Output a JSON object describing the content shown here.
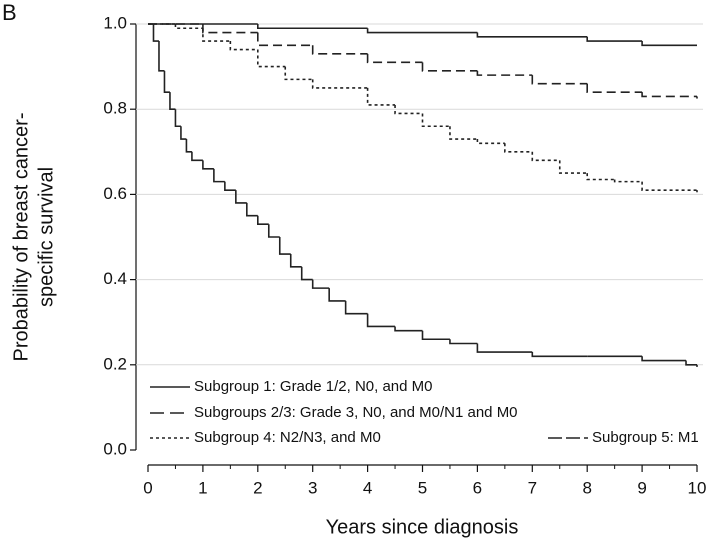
{
  "chart_data": {
    "type": "step",
    "panel_label": "B",
    "xlabel": "Years since diagnosis",
    "ylabel": [
      "Probability of breast cancer-",
      "specific survival"
    ],
    "xlim": [
      0,
      10
    ],
    "xticks": [
      0,
      1,
      2,
      3,
      4,
      5,
      6,
      7,
      8,
      9,
      10
    ],
    "xminorticks": [
      0.5,
      1.5,
      2.5,
      3.5,
      4.5,
      5.5,
      6.5,
      7.5,
      8.5,
      9.5
    ],
    "ylim": [
      0,
      1
    ],
    "yticks": [
      {
        "value": 0,
        "label": "0.0"
      },
      0.2,
      0.4,
      0.6,
      0.8,
      {
        "value": 1,
        "label": "1.0"
      }
    ],
    "grid": true,
    "series": [
      {
        "name": "Subgroup 1: Grade 1/2, N0, and M0",
        "color": "#222222",
        "dash": "solid",
        "x": [
          0,
          2,
          4,
          6,
          8,
          9,
          10
        ],
        "values": [
          1.0,
          0.99,
          0.98,
          0.97,
          0.96,
          0.95,
          0.95
        ]
      },
      {
        "name": "Subgroups 2/3: Grade 3, N0, and M0/N1 and M0",
        "color": "#222222",
        "dash": "long",
        "x": [
          0,
          1,
          2,
          3,
          4,
          5,
          6,
          7,
          8,
          9,
          10
        ],
        "values": [
          1.0,
          0.98,
          0.95,
          0.93,
          0.91,
          0.89,
          0.88,
          0.86,
          0.84,
          0.83,
          0.825
        ]
      },
      {
        "name": "Subgroup 4: N2/N3, and M0",
        "color": "#222222",
        "dash": "short",
        "x": [
          0,
          0.5,
          1,
          1.5,
          2,
          2.5,
          3,
          4,
          4.5,
          5,
          5.5,
          6,
          6.5,
          7,
          7.5,
          8,
          8.5,
          9,
          10
        ],
        "values": [
          1.0,
          0.99,
          0.96,
          0.94,
          0.9,
          0.87,
          0.85,
          0.81,
          0.79,
          0.76,
          0.73,
          0.72,
          0.7,
          0.68,
          0.65,
          0.635,
          0.63,
          0.61,
          0.605
        ]
      },
      {
        "name": "Subgroup 5: M1",
        "color": "#222222",
        "dash": "solid",
        "x": [
          0,
          0.1,
          0.2,
          0.3,
          0.4,
          0.5,
          0.6,
          0.7,
          0.8,
          1.0,
          1.2,
          1.4,
          1.6,
          1.8,
          2.0,
          2.2,
          2.4,
          2.6,
          2.8,
          3.0,
          3.3,
          3.6,
          4.0,
          4.5,
          5.0,
          5.5,
          6.0,
          7.0,
          8.0,
          9.0,
          9.8,
          10
        ],
        "values": [
          1.0,
          0.96,
          0.89,
          0.84,
          0.8,
          0.76,
          0.73,
          0.7,
          0.68,
          0.66,
          0.63,
          0.61,
          0.58,
          0.55,
          0.53,
          0.5,
          0.46,
          0.43,
          0.4,
          0.38,
          0.35,
          0.32,
          0.29,
          0.28,
          0.26,
          0.25,
          0.23,
          0.22,
          0.22,
          0.21,
          0.2,
          0.195
        ]
      }
    ]
  }
}
